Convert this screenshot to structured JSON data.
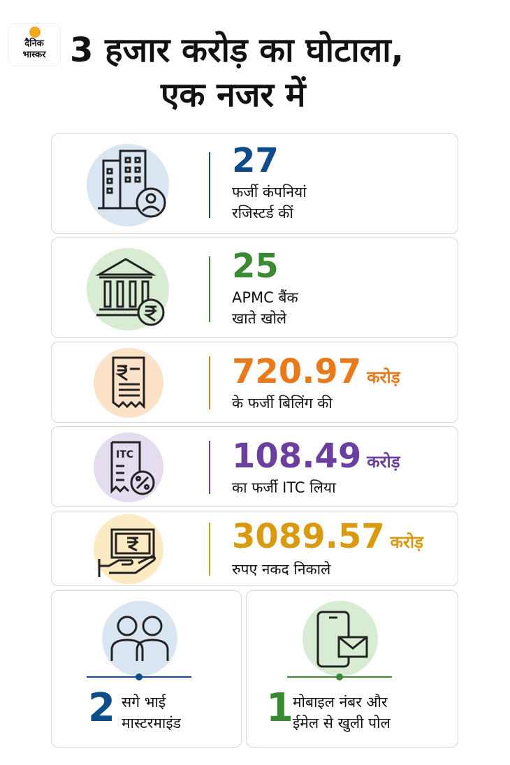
{
  "brand": {
    "line1": "दैनिक",
    "line2": "भास्कर"
  },
  "title": {
    "line1": "3 हजार करोड़ का घोटाला,",
    "line2": "एक नजर में"
  },
  "stats": [
    {
      "value": "27",
      "unit": "",
      "desc1": "फर्जी कंपनियां",
      "desc2": "रजिस्टर्ड कीं",
      "color": "#0f4c8a",
      "icon": "building-user-icon",
      "circle": "#d9e6f2"
    },
    {
      "value": "25",
      "unit": "",
      "desc1": "APMC बैंक",
      "desc2": "खाते खोले",
      "color": "#3a8a34",
      "icon": "bank-rupee-icon",
      "circle": "#d8ecd3"
    },
    {
      "value": "720.97",
      "unit": "करोड़",
      "desc1": "के फर्जी बिलिंग की",
      "desc2": "",
      "color": "#e87a1c",
      "icon": "rupee-bill-icon",
      "circle": "#fbe2c9"
    },
    {
      "value": "108.49",
      "unit": "करोड़",
      "desc1": "का फर्जी ITC लिया",
      "desc2": "",
      "color": "#6a3fa0",
      "icon": "itc-receipt-icon",
      "circle": "#e5dcf0"
    },
    {
      "value": "3089.57",
      "unit": "करोड़",
      "desc1": "रुपए नकद निकाले",
      "desc2": "",
      "color": "#d99a10",
      "icon": "cash-hand-icon",
      "circle": "#fbeac2"
    }
  ],
  "bottom": [
    {
      "value": "2",
      "desc1": "सगे भाई",
      "desc2": "मास्टरमाइंड",
      "color": "#0f4c8a",
      "icon": "two-people-icon",
      "circle": "#d9e6f2"
    },
    {
      "value": "1",
      "desc1": "मोबाइल नंबर और",
      "desc2": "ईमेल से खुली पोल",
      "color": "#3a8a34",
      "icon": "mobile-mail-icon",
      "circle": "#d8ecd3"
    }
  ],
  "itc_label": "ITC"
}
